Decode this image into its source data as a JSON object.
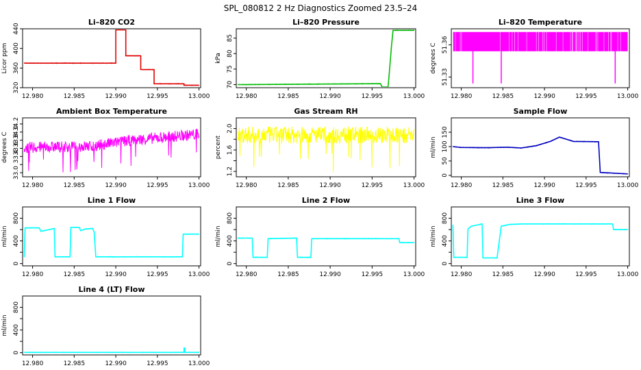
{
  "figure_title": "SPL_080812  2 Hz Diagnostics Zoomed 23.5–24",
  "x_ticks": [
    "12.980",
    "12.985",
    "12.990",
    "12.995",
    "13.000"
  ],
  "chart_data": [
    {
      "type": "line",
      "title": "Li–820 CO2",
      "xlabel": "",
      "ylabel": "Licor ppm",
      "xlim": [
        12.9788,
        13.0002
      ],
      "ylim": [
        320,
        440
      ],
      "yticks": [
        320,
        360,
        400,
        440
      ],
      "color": "#e00000",
      "series": [
        {
          "style": "line",
          "x": [
            12.979,
            12.99,
            12.99,
            12.9912,
            12.9912,
            12.993,
            12.993,
            12.9946,
            12.9946,
            12.9982,
            12.9982,
            13.0
          ],
          "y": [
            370,
            370,
            438,
            438,
            385,
            385,
            357,
            357,
            328,
            328,
            325,
            325
          ]
        }
      ]
    },
    {
      "type": "line",
      "title": "Li–820 Pressure",
      "xlabel": "",
      "ylabel": "kPa",
      "xlim": [
        12.9788,
        13.0002
      ],
      "ylim": [
        69,
        88
      ],
      "yticks": [
        70,
        75,
        80,
        85
      ],
      "color": "#00bb00",
      "series": [
        {
          "style": "line",
          "x": [
            12.979,
            12.996,
            12.9962,
            12.9969,
            12.997,
            12.9973,
            12.9975,
            13.0
          ],
          "y": [
            70.0,
            70.3,
            69.2,
            69.2,
            72.0,
            82.0,
            87.5,
            87.5
          ]
        }
      ]
    },
    {
      "type": "line",
      "title": "Li–820 Temperature",
      "xlabel": "",
      "ylabel": "degrees C",
      "xlim": [
        12.9788,
        13.0002
      ],
      "ylim": [
        51.32,
        51.375
      ],
      "yticks": [
        51.33,
        51.36
      ],
      "color": "#ff00ff",
      "series": [
        {
          "style": "band",
          "x": [
            12.979,
            13.0
          ],
          "y_low": 51.354,
          "y_high": 51.372,
          "dips": [
            12.9814,
            12.9848,
            12.9985
          ]
        }
      ]
    },
    {
      "type": "line",
      "title": "Ambient Box Temperature",
      "xlabel": "",
      "ylabel": "degrees C",
      "xlim": [
        12.9788,
        13.0002
      ],
      "ylim": [
        32.9,
        34.35
      ],
      "yticks": [
        33.0,
        33.2,
        33.4,
        33.6,
        33.8,
        34.0,
        34.2
      ],
      "ytick_labels": [
        "33.0",
        "",
        "33.4",
        "33.6",
        "33.8",
        "34.0",
        "34.2"
      ],
      "color": "#ff00ff",
      "series": [
        {
          "style": "noise",
          "x": [
            12.979,
            12.987,
            12.992,
            13.0
          ],
          "y": [
            33.62,
            33.65,
            33.8,
            33.95
          ],
          "amp": 0.14
        }
      ]
    },
    {
      "type": "line",
      "title": "Gas Stream RH",
      "xlabel": "",
      "ylabel": "percent",
      "xlim": [
        12.9788,
        13.0002
      ],
      "ylim": [
        1.1,
        2.2
      ],
      "yticks": [
        1.2,
        1.4,
        1.6,
        1.8,
        2.0
      ],
      "ytick_labels": [
        "1.2",
        "",
        "1.6",
        "",
        "2.0"
      ],
      "color": "#ffff00",
      "series": [
        {
          "style": "noise",
          "x": [
            12.979,
            13.0
          ],
          "y": [
            1.88,
            1.88
          ],
          "amp": 0.16
        }
      ]
    },
    {
      "type": "line",
      "title": "Sample Flow",
      "xlabel": "",
      "ylabel": "ml/min",
      "xlim": [
        12.9788,
        13.0002
      ],
      "ylim": [
        -5,
        200
      ],
      "yticks": [
        0,
        50,
        100,
        150
      ],
      "color": "#0000c0",
      "series": [
        {
          "style": "line",
          "x": [
            12.979,
            12.98,
            12.98,
            12.983,
            12.983,
            12.9855,
            12.9855,
            12.9872,
            12.9872,
            12.989,
            12.989,
            12.9907,
            12.9907,
            12.9918,
            12.9918,
            12.9935,
            12.9935,
            12.9965,
            12.9965,
            12.9967,
            12.9967,
            13.0
          ],
          "y": [
            100,
            97,
            97,
            96,
            96,
            98,
            98,
            95,
            95,
            103,
            103,
            118,
            118,
            133,
            133,
            118,
            118,
            117,
            117,
            10,
            10,
            5
          ]
        }
      ]
    },
    {
      "type": "line",
      "title": "Line 1 Flow",
      "xlabel": "",
      "ylabel": "ml/min",
      "xlim": [
        12.9788,
        13.0002
      ],
      "ylim": [
        -40,
        1000
      ],
      "yticks": [
        0,
        200,
        400,
        600,
        800
      ],
      "ytick_labels": [
        "0",
        "",
        "400",
        "",
        "800"
      ],
      "color": "#00ffff",
      "series": [
        {
          "style": "line",
          "x": [
            12.979,
            12.9791,
            12.9793,
            12.9808,
            12.981,
            12.9823,
            12.9826,
            12.9827,
            12.9843,
            12.9845,
            12.9846,
            12.9856,
            12.9858,
            12.9863,
            12.9872,
            12.9874,
            12.9876,
            12.9878,
            12.988,
            12.998,
            12.9981,
            13.0
          ],
          "y": [
            120,
            630,
            630,
            630,
            570,
            610,
            620,
            120,
            120,
            120,
            640,
            640,
            580,
            610,
            620,
            560,
            120,
            120,
            120,
            120,
            520,
            520
          ]
        }
      ]
    },
    {
      "type": "line",
      "title": "Line 2 Flow",
      "xlabel": "",
      "ylabel": "ml/min",
      "xlim": [
        12.9788,
        13.0002
      ],
      "ylim": [
        -40,
        1000
      ],
      "yticks": [
        0,
        200,
        400,
        600,
        800
      ],
      "ytick_labels": [
        "0",
        "",
        "400",
        "",
        "800"
      ],
      "color": "#00ffff",
      "series": [
        {
          "style": "line",
          "x": [
            12.979,
            12.9807,
            12.9808,
            12.9825,
            12.9826,
            12.986,
            12.9861,
            12.9877,
            12.9878,
            12.9982,
            12.9983,
            13.0
          ],
          "y": [
            450,
            450,
            110,
            110,
            440,
            450,
            110,
            110,
            440,
            440,
            370,
            370
          ]
        }
      ]
    },
    {
      "type": "line",
      "title": "Line 3 Flow",
      "xlabel": "",
      "ylabel": "ml/min",
      "xlim": [
        12.9788,
        13.0002
      ],
      "ylim": [
        -40,
        1000
      ],
      "yticks": [
        0,
        200,
        400,
        600,
        800
      ],
      "ytick_labels": [
        "0",
        "",
        "400",
        "",
        "800"
      ],
      "color": "#00ffff",
      "series": [
        {
          "style": "line",
          "x": [
            12.979,
            12.9791,
            12.9792,
            12.9807,
            12.9808,
            12.9812,
            12.9825,
            12.9826,
            12.9842,
            12.9843,
            12.9848,
            12.9858,
            12.9874,
            12.9982,
            12.9983,
            13.0
          ],
          "y": [
            680,
            110,
            110,
            110,
            610,
            660,
            700,
            100,
            100,
            100,
            660,
            690,
            700,
            700,
            600,
            600
          ]
        }
      ]
    },
    {
      "type": "line",
      "title": "Line 4 (LT) Flow",
      "xlabel": "",
      "ylabel": "ml/min",
      "xlim": [
        12.9788,
        13.0002
      ],
      "ylim": [
        -40,
        1000
      ],
      "yticks": [
        0,
        200,
        400,
        600,
        800
      ],
      "ytick_labels": [
        "0",
        "",
        "400",
        "",
        "800"
      ],
      "color": "#00ffff",
      "series": [
        {
          "style": "line",
          "x": [
            12.979,
            12.9982,
            12.9982,
            12.9983,
            12.9983,
            13.0
          ],
          "y": [
            5,
            5,
            80,
            80,
            5,
            5
          ]
        }
      ]
    }
  ]
}
